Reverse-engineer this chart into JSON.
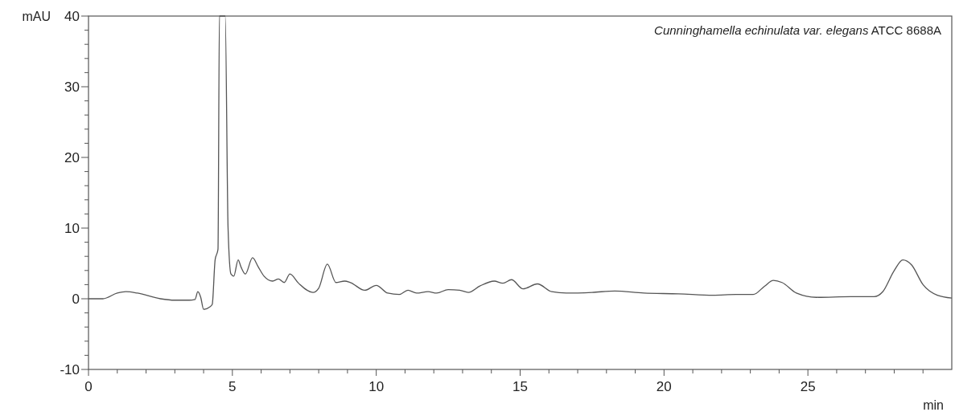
{
  "chart_data": {
    "type": "line",
    "xlabel": "min",
    "ylabel": "mAU",
    "annotations": [
      "Cunninghamella echinulata var. elegans",
      "ATCC 8688A"
    ],
    "xlim": [
      0,
      30
    ],
    "ylim": [
      -10,
      40
    ],
    "xticks": [
      0,
      {
        "value": 1,
        "label": null
      },
      {
        "value": 2,
        "label": null
      },
      {
        "value": 3,
        "label": null
      },
      {
        "value": 4,
        "label": null
      },
      5,
      {
        "value": 6,
        "label": null
      },
      {
        "value": 7,
        "label": null
      },
      {
        "value": 8,
        "label": null
      },
      {
        "value": 9,
        "label": null
      },
      10,
      {
        "value": 11,
        "label": null
      },
      {
        "value": 12,
        "label": null
      },
      {
        "value": 13,
        "label": null
      },
      {
        "value": 14,
        "label": null
      },
      15,
      {
        "value": 16,
        "label": null
      },
      {
        "value": 17,
        "label": null
      },
      {
        "value": 18,
        "label": null
      },
      {
        "value": 19,
        "label": null
      },
      20,
      {
        "value": 21,
        "label": null
      },
      {
        "value": 22,
        "label": null
      },
      {
        "value": 23,
        "label": null
      },
      {
        "value": 24,
        "label": null
      },
      25,
      {
        "value": 26,
        "label": null
      },
      {
        "value": 27,
        "label": null
      },
      {
        "value": 28,
        "label": null
      },
      {
        "value": 29,
        "label": null
      }
    ],
    "yticks": [
      -10,
      {
        "value": -8,
        "label": null
      },
      {
        "value": -6,
        "label": null
      },
      {
        "value": -4,
        "label": null
      },
      {
        "value": -2,
        "label": null
      },
      0,
      {
        "value": 2,
        "label": null
      },
      {
        "value": 4,
        "label": null
      },
      {
        "value": 6,
        "label": null
      },
      {
        "value": 8,
        "label": null
      },
      10,
      {
        "value": 12,
        "label": null
      },
      {
        "value": 14,
        "label": null
      },
      {
        "value": 16,
        "label": null
      },
      {
        "value": 18,
        "label": null
      },
      20,
      {
        "value": 22,
        "label": null
      },
      {
        "value": 24,
        "label": null
      },
      {
        "value": 26,
        "label": null
      },
      {
        "value": 28,
        "label": null
      },
      30,
      {
        "value": 32,
        "label": null
      },
      {
        "value": 34,
        "label": null
      },
      {
        "value": 36,
        "label": null
      },
      {
        "value": 38,
        "label": null
      },
      40
    ],
    "marker": "none",
    "line_style": "solid",
    "series": [
      {
        "color": "#555555",
        "x": [
          0,
          0.5,
          1,
          1.3,
          1.7,
          2.5,
          3,
          3.5,
          3.7,
          3.8,
          3.9,
          4.0,
          4.2,
          4.3,
          4.4,
          4.5,
          4.55,
          4.75,
          4.85,
          4.95,
          5.05,
          5.2,
          5.3,
          5.45,
          5.7,
          5.9,
          6.1,
          6.4,
          6.6,
          6.8,
          7.0,
          7.3,
          7.8,
          8.0,
          8.3,
          8.6,
          8.9,
          9.1,
          9.6,
          10.0,
          10.4,
          10.8,
          11.1,
          11.4,
          11.8,
          12.1,
          12.5,
          12.9,
          13.2,
          13.6,
          14.1,
          14.4,
          14.7,
          15.1,
          15.6,
          16.1,
          16.6,
          17.5,
          18.3,
          19.3,
          20.5,
          21.7,
          22.5,
          23.1,
          23.5,
          23.8,
          24.1,
          24.6,
          25.3,
          26.5,
          27.3,
          27.6,
          28.0,
          28.3,
          28.6,
          29.0,
          29.5,
          30
        ],
        "values": [
          0,
          0,
          0.8,
          1.0,
          0.8,
          0,
          -0.2,
          -0.2,
          -0.1,
          1.0,
          0.2,
          -1.5,
          -1.2,
          -0.8,
          5.5,
          7,
          40,
          40,
          10,
          3.5,
          3.2,
          5.5,
          4.5,
          3.5,
          5.8,
          4.5,
          3.2,
          2.5,
          2.8,
          2.3,
          3.5,
          2.2,
          0.9,
          1.5,
          4.9,
          2.3,
          2.5,
          2.3,
          1.2,
          1.9,
          0.8,
          0.6,
          1.2,
          0.8,
          1.0,
          0.8,
          1.3,
          1.2,
          0.9,
          1.8,
          2.5,
          2.2,
          2.7,
          1.4,
          2.1,
          1.0,
          0.8,
          0.9,
          1.1,
          0.8,
          0.7,
          0.5,
          0.6,
          0.6,
          1.8,
          2.6,
          2.3,
          0.8,
          0.2,
          0.3,
          0.3,
          1.0,
          4.0,
          5.5,
          4.8,
          2.0,
          0.5,
          0.1
        ]
      }
    ]
  }
}
